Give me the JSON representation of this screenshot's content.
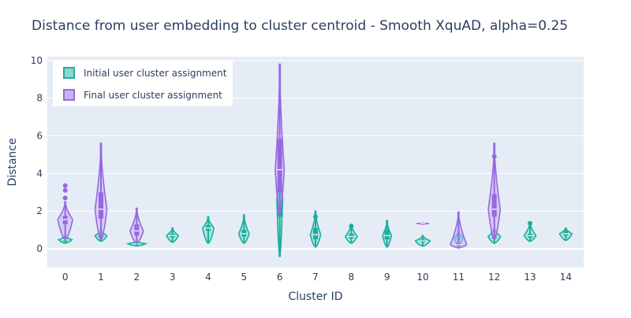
{
  "chart_data": {
    "type": "violin",
    "title": "Distance from user embedding to cluster centroid - Smooth XquAD, alpha=0.25",
    "xlabel": "Cluster ID",
    "ylabel": "Distance",
    "categories": [
      "0",
      "1",
      "2",
      "3",
      "4",
      "5",
      "6",
      "7",
      "8",
      "9",
      "10",
      "11",
      "12",
      "13",
      "14"
    ],
    "ylim": [
      -1,
      10.2
    ],
    "yticks": [
      0,
      2,
      4,
      6,
      8,
      10
    ],
    "grid": true,
    "legend": {
      "placement": "top-left",
      "orientation": "vertical"
    },
    "series": [
      {
        "name": "Initial user cluster assignment",
        "color": "#1aaf9d",
        "fill": "#8fd8cf",
        "violins": [
          {
            "category": "0",
            "min": 0.3,
            "q1": 0.4,
            "median": 0.48,
            "q3": 0.55,
            "max": 0.7,
            "width": 0.45,
            "outliers": []
          },
          {
            "category": "1",
            "min": 0.4,
            "q1": 0.6,
            "median": 0.7,
            "q3": 0.8,
            "max": 1.0,
            "width": 0.4,
            "outliers": []
          },
          {
            "category": "2",
            "min": 0.15,
            "q1": 0.22,
            "median": 0.27,
            "q3": 0.32,
            "max": 0.4,
            "width": 0.6,
            "outliers": []
          },
          {
            "category": "3",
            "min": 0.35,
            "q1": 0.6,
            "median": 0.7,
            "q3": 0.8,
            "max": 1.1,
            "width": 0.4,
            "outliers": []
          },
          {
            "category": "4",
            "min": 0.3,
            "q1": 0.95,
            "median": 1.1,
            "q3": 1.25,
            "max": 1.7,
            "width": 0.38,
            "outliers": []
          },
          {
            "category": "5",
            "min": 0.3,
            "q1": 0.65,
            "median": 0.8,
            "q3": 1.0,
            "max": 1.8,
            "width": 0.35,
            "outliers": []
          },
          {
            "category": "6",
            "min": -0.4,
            "q1": 1.7,
            "median": 2.7,
            "q3": 3.5,
            "max": 3.8,
            "width": 0.2,
            "outliers": []
          },
          {
            "category": "7",
            "min": 0.1,
            "q1": 0.5,
            "median": 0.75,
            "q3": 1.1,
            "max": 2.0,
            "width": 0.35,
            "outliers": [
              1.7
            ]
          },
          {
            "category": "8",
            "min": 0.3,
            "q1": 0.55,
            "median": 0.65,
            "q3": 0.8,
            "max": 1.3,
            "width": 0.4,
            "outliers": [
              1.2
            ]
          },
          {
            "category": "9",
            "min": 0.1,
            "q1": 0.5,
            "median": 0.7,
            "q3": 1.0,
            "max": 1.5,
            "width": 0.3,
            "outliers": []
          },
          {
            "category": "10",
            "min": 0.15,
            "q1": 0.35,
            "median": 0.42,
            "q3": 0.5,
            "max": 0.7,
            "width": 0.5,
            "outliers": []
          },
          {
            "category": "11",
            "min": 0.2,
            "q1": 0.5,
            "median": 0.6,
            "q3": 0.7,
            "max": 0.95,
            "width": 0.3,
            "outliers": []
          },
          {
            "category": "12",
            "min": 0.3,
            "q1": 0.55,
            "median": 0.65,
            "q3": 0.75,
            "max": 1.1,
            "width": 0.42,
            "outliers": []
          },
          {
            "category": "13",
            "min": 0.4,
            "q1": 0.6,
            "median": 0.7,
            "q3": 0.8,
            "max": 1.4,
            "width": 0.4,
            "outliers": [
              1.35
            ]
          },
          {
            "category": "14",
            "min": 0.45,
            "q1": 0.7,
            "median": 0.8,
            "q3": 0.95,
            "max": 1.1,
            "width": 0.42,
            "outliers": []
          }
        ]
      },
      {
        "name": "Final user cluster assignment",
        "color": "#9669e0",
        "fill": "#c8b2f0",
        "violins": [
          {
            "category": "0",
            "min": 0.5,
            "q1": 1.3,
            "median": 1.55,
            "q3": 1.75,
            "max": 2.5,
            "width": 0.5,
            "outliers": [
              2.7,
              3.1,
              3.35
            ]
          },
          {
            "category": "1",
            "min": 0.5,
            "q1": 1.6,
            "median": 2.1,
            "q3": 3.0,
            "max": 5.6,
            "width": 0.4,
            "outliers": []
          },
          {
            "category": "2",
            "min": 0.3,
            "q1": 0.7,
            "median": 0.95,
            "q3": 1.3,
            "max": 2.15,
            "width": 0.45,
            "outliers": []
          },
          {
            "category": "6",
            "min": 1.8,
            "q1": 3.0,
            "median": 4.2,
            "q3": 5.85,
            "max": 9.8,
            "width": 0.3,
            "outliers": []
          },
          {
            "category": "10",
            "min": 1.34,
            "q1": 1.34,
            "median": 1.34,
            "q3": 1.35,
            "max": 1.36,
            "width": 0.45,
            "outliers": []
          },
          {
            "category": "11",
            "min": 0.05,
            "q1": 0.15,
            "median": 0.22,
            "q3": 0.3,
            "max": 1.95,
            "width": 0.55,
            "outliers": []
          },
          {
            "category": "12",
            "min": 0.5,
            "q1": 1.7,
            "median": 2.1,
            "q3": 2.9,
            "max": 5.6,
            "width": 0.4,
            "outliers": [
              4.9
            ]
          }
        ]
      }
    ]
  }
}
